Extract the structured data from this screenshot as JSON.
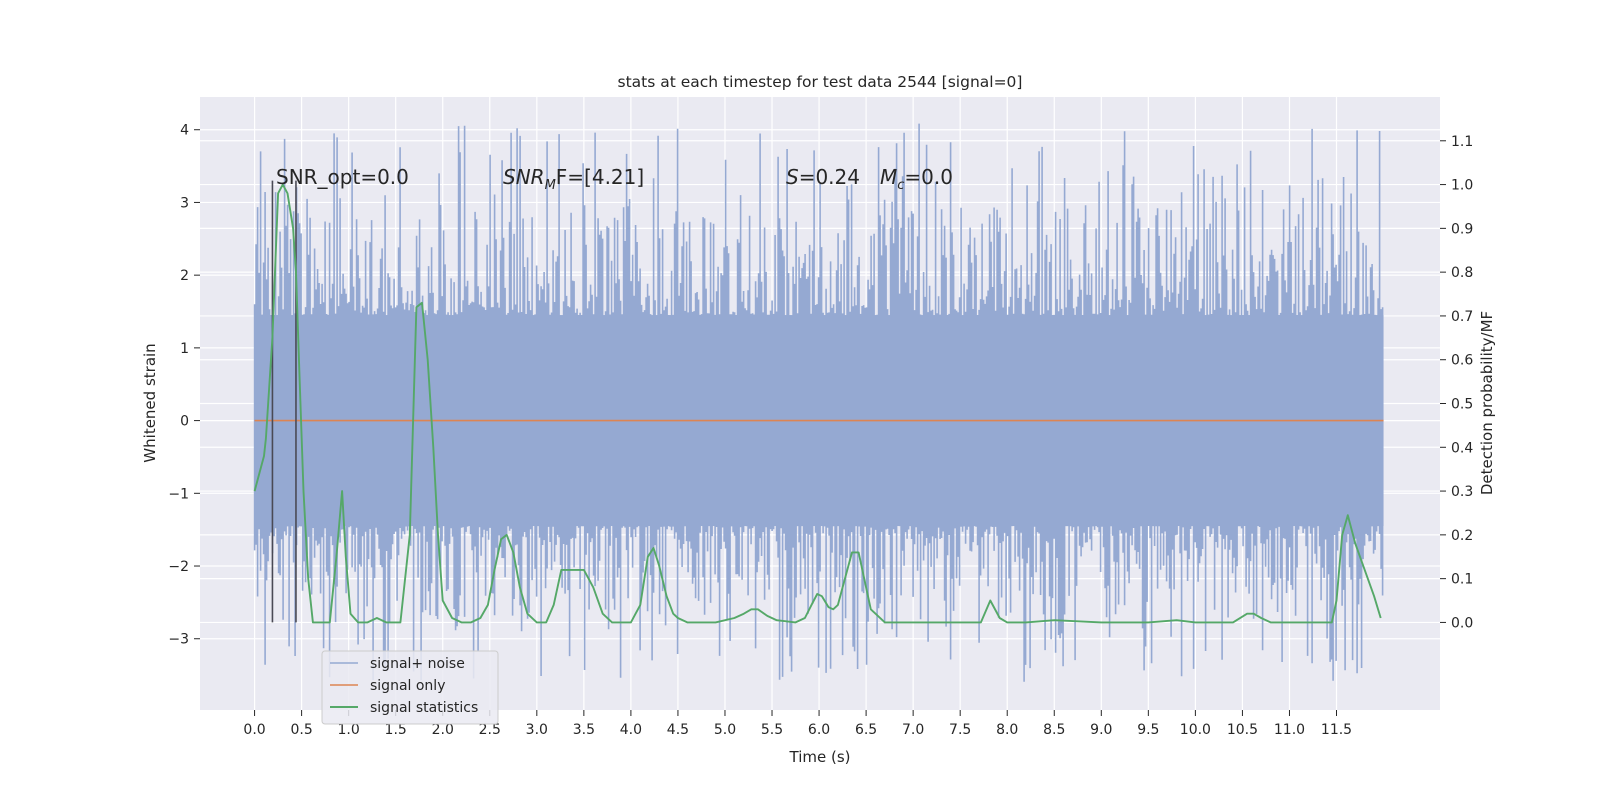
{
  "chart_data": {
    "type": "line",
    "title": "stats at each timestep for test data 2544 [signal=0]",
    "xlabel": "Time (s)",
    "ylabel": "Whitened strain",
    "y2label": "Detection probability/MF",
    "xlim": [
      -0.58,
      12.6
    ],
    "ylim": [
      -3.98,
      4.45
    ],
    "y2lim": [
      -0.2,
      1.2
    ],
    "x_ticks": [
      "0.0",
      "0.5",
      "1.0",
      "1.5",
      "2.0",
      "2.5",
      "3.0",
      "3.5",
      "4.0",
      "4.5",
      "5.0",
      "5.5",
      "6.0",
      "6.5",
      "7.0",
      "7.5",
      "8.0",
      "8.5",
      "9.0",
      "9.5",
      "10.0",
      "10.5",
      "11.0",
      "11.5"
    ],
    "y_ticks": [
      "4",
      "3",
      "2",
      "1",
      "0",
      "−1",
      "−2",
      "−3"
    ],
    "y2_ticks": [
      "1.1",
      "1.0",
      "0.9",
      "0.8",
      "0.7",
      "0.6",
      "0.5",
      "0.4",
      "0.3",
      "0.2",
      "0.1",
      "0.0"
    ],
    "grid": true,
    "legend_position": "lower-left",
    "annotations": {
      "snr_opt": "SNR_opt=0.0",
      "snr_mf_main": "SNR",
      "snr_mf_sub": "M",
      "snr_mf_rest": "F=[4.21]",
      "s_main": "S",
      "s_rest": "=0.24",
      "mc_main": "M",
      "mc_sub": "c",
      "mc_rest": "=0.0"
    },
    "vertical_markers_x": [
      0.19,
      0.44
    ],
    "series": [
      {
        "name": "signal+ noise",
        "color": "#95a9d2",
        "summary": "dense whitened noise, core envelope about ±1.45, spikes between about −3.6 and 4.1",
        "x_range": [
          0.0,
          12.0
        ],
        "peak_y": 4.1,
        "min_y": -3.6
      },
      {
        "name": "signal only",
        "color": "#dd8452",
        "x": [
          0.0,
          12.0
        ],
        "y": [
          0.0,
          0.0
        ]
      },
      {
        "name": "signal statistics",
        "color": "#55a868",
        "axis": "right",
        "x": [
          0.0,
          0.1,
          0.12,
          0.19,
          0.25,
          0.3,
          0.35,
          0.41,
          0.44,
          0.48,
          0.52,
          0.57,
          0.62,
          0.7,
          0.8,
          0.87,
          0.93,
          0.97,
          1.02,
          1.1,
          1.2,
          1.3,
          1.4,
          1.55,
          1.65,
          1.72,
          1.78,
          1.84,
          1.9,
          1.95,
          2.0,
          2.1,
          2.2,
          2.3,
          2.4,
          2.48,
          2.55,
          2.62,
          2.68,
          2.75,
          2.82,
          2.9,
          3.0,
          3.1,
          3.18,
          3.26,
          3.33,
          3.42,
          3.5,
          3.6,
          3.7,
          3.8,
          4.0,
          4.1,
          4.18,
          4.24,
          4.3,
          4.38,
          4.45,
          4.5,
          4.6,
          4.7,
          4.9,
          5.1,
          5.2,
          5.28,
          5.35,
          5.45,
          5.55,
          5.75,
          5.85,
          5.92,
          5.98,
          6.03,
          6.1,
          6.15,
          6.2,
          6.3,
          6.35,
          6.42,
          6.48,
          6.55,
          6.7,
          7.0,
          7.5,
          7.72,
          7.82,
          7.92,
          8.0,
          8.2,
          8.5,
          9.0,
          9.5,
          9.8,
          10.0,
          10.4,
          10.55,
          10.62,
          10.7,
          10.8,
          11.0,
          11.3,
          11.45,
          11.5,
          11.56,
          11.62,
          11.7,
          11.8,
          11.9,
          11.97
        ],
        "y": [
          0.3,
          0.38,
          0.42,
          0.65,
          0.98,
          1.0,
          0.98,
          0.9,
          0.8,
          0.55,
          0.3,
          0.1,
          0.0,
          0.0,
          0.0,
          0.15,
          0.3,
          0.15,
          0.02,
          0.0,
          0.0,
          0.01,
          0.0,
          0.0,
          0.2,
          0.72,
          0.73,
          0.6,
          0.4,
          0.2,
          0.05,
          0.01,
          0.0,
          0.0,
          0.01,
          0.04,
          0.12,
          0.19,
          0.2,
          0.16,
          0.08,
          0.02,
          0.0,
          0.0,
          0.04,
          0.12,
          0.12,
          0.12,
          0.12,
          0.08,
          0.02,
          0.0,
          0.0,
          0.04,
          0.15,
          0.17,
          0.13,
          0.06,
          0.02,
          0.01,
          0.0,
          0.0,
          0.0,
          0.01,
          0.02,
          0.03,
          0.03,
          0.015,
          0.005,
          0.0,
          0.01,
          0.04,
          0.065,
          0.06,
          0.035,
          0.03,
          0.04,
          0.12,
          0.16,
          0.16,
          0.1,
          0.03,
          0.0,
          0.0,
          0.0,
          0.0,
          0.05,
          0.01,
          0.0,
          0.0,
          0.005,
          0.0,
          0.0,
          0.005,
          0.0,
          0.0,
          0.02,
          0.02,
          0.01,
          0.0,
          0.0,
          0.0,
          0.0,
          0.05,
          0.2,
          0.245,
          0.18,
          0.12,
          0.06,
          0.01
        ]
      }
    ]
  },
  "legend": {
    "items": [
      {
        "label": "signal+ noise",
        "color": "#95a9d2"
      },
      {
        "label": "signal only",
        "color": "#dd8452"
      },
      {
        "label": "signal statistics",
        "color": "#55a868"
      }
    ]
  }
}
